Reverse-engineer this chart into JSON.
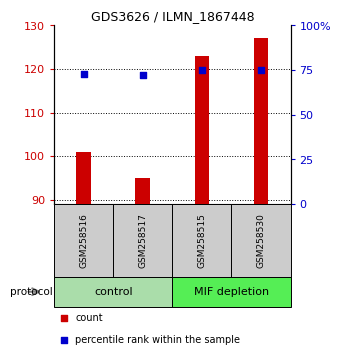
{
  "title": "GDS3626 / ILMN_1867448",
  "samples": [
    "GSM258516",
    "GSM258517",
    "GSM258515",
    "GSM258530"
  ],
  "bar_values": [
    101,
    95,
    123,
    127
  ],
  "bar_bottom": 89,
  "percentile_values": [
    73,
    72,
    75,
    75
  ],
  "bar_color": "#cc0000",
  "dot_color": "#0000cc",
  "ylim_left": [
    89,
    130
  ],
  "ylim_right": [
    0,
    100
  ],
  "yticks_left": [
    90,
    100,
    110,
    120,
    130
  ],
  "yticks_right": [
    0,
    25,
    50,
    75,
    100
  ],
  "ytick_labels_right": [
    "0",
    "25",
    "50",
    "75",
    "100%"
  ],
  "groups": [
    {
      "label": "control",
      "samples": [
        0,
        1
      ],
      "color": "#aaddaa"
    },
    {
      "label": "MIF depletion",
      "samples": [
        2,
        3
      ],
      "color": "#55ee55"
    }
  ],
  "protocol_label": "protocol",
  "legend_count_label": "count",
  "legend_pct_label": "percentile rank within the sample",
  "background_color": "#ffffff",
  "sample_box_color": "#cccccc",
  "bar_width": 0.25
}
